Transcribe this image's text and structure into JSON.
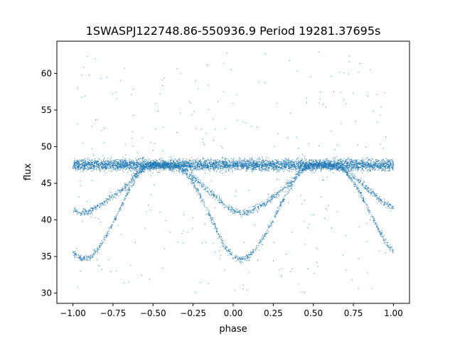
{
  "chart_data": {
    "type": "scatter",
    "title": "1SWASPJ122748.86-550936.9 Period 19281.37695s",
    "xlabel": "phase",
    "ylabel": "flux",
    "xlim": [
      -1.1,
      1.1
    ],
    "ylim": [
      28.6,
      64.4
    ],
    "xticks": [
      -1.0,
      -0.75,
      -0.5,
      -0.25,
      0.0,
      0.25,
      0.5,
      0.75,
      1.0
    ],
    "xtick_labels": [
      "−1.00",
      "−0.75",
      "−0.50",
      "−0.25",
      "0.00",
      "0.25",
      "0.50",
      "0.75",
      "1.00"
    ],
    "yticks": [
      30,
      35,
      40,
      45,
      50,
      55,
      60
    ],
    "ytick_labels": [
      "30",
      "35",
      "40",
      "45",
      "50",
      "55",
      "60"
    ],
    "grid": false,
    "legend": "none",
    "point_color": "#1f77b4",
    "series": [
      {
        "name": "",
        "description_of_shape": "phase-folded light curve",
        "x": [
          -1.0,
          -0.95,
          -0.9,
          -0.85,
          -0.8,
          -0.75,
          -0.7,
          -0.65,
          -0.6,
          -0.55,
          -0.5,
          -0.45,
          -0.4,
          -0.35,
          -0.3,
          -0.25,
          -0.2,
          -0.15,
          -0.1,
          -0.05,
          0.0,
          0.05,
          0.1,
          0.15,
          0.2,
          0.25,
          0.3,
          0.35,
          0.4,
          0.45,
          0.5,
          0.55,
          0.6,
          0.65,
          0.7,
          0.75,
          0.8,
          0.85,
          0.9,
          0.95,
          1.0
        ],
        "baseline_flux": 47.5,
        "deep_dip_flux": [
          35.5,
          34.8,
          34.7,
          35.8,
          37.5,
          39.5,
          41.8,
          44.0,
          46.0,
          47.2,
          47.5,
          47.5,
          47.5,
          47.3,
          46.5,
          45.0,
          43.0,
          40.8,
          38.5,
          36.2,
          35.0,
          34.6,
          35.0,
          36.3,
          38.0,
          40.0,
          42.2,
          44.3,
          46.0,
          47.2,
          47.5,
          47.5,
          47.5,
          47.3,
          46.6,
          45.2,
          43.4,
          41.2,
          39.0,
          37.0,
          35.6
        ],
        "shallow_dip_flux": [
          41.3,
          41.0,
          41.1,
          41.8,
          42.5,
          43.2,
          44.0,
          45.0,
          46.3,
          47.2,
          47.5,
          47.5,
          47.5,
          47.3,
          46.7,
          45.8,
          44.9,
          43.9,
          43.0,
          42.0,
          41.3,
          41.0,
          41.1,
          41.6,
          42.3,
          43.1,
          44.0,
          45.0,
          46.2,
          47.1,
          47.5,
          47.5,
          47.5,
          47.4,
          46.9,
          46.0,
          45.0,
          44.0,
          43.0,
          42.2,
          41.7
        ]
      }
    ]
  }
}
